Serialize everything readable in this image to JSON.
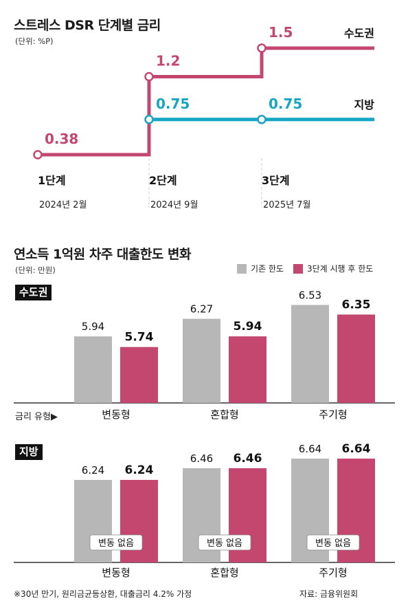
{
  "colors": {
    "capital": "#c3476f",
    "regional": "#17a5c4",
    "existing_bar": "#b7b7b7",
    "after_bar": "#c3476f",
    "badge_bg": "#111111",
    "axis": "#333333",
    "grid": "#cfcfcf"
  },
  "top": {
    "title": "스트레스 DSR 단계별 금리",
    "unit": "(단위: %P)",
    "series_labels": {
      "capital": "수도권",
      "regional": "지방"
    },
    "stages": [
      {
        "label": "1단계",
        "date": "2024년 2월"
      },
      {
        "label": "2단계",
        "date": "2024년 9월"
      },
      {
        "label": "3단계",
        "date": "2025년 7월"
      }
    ]
  },
  "bottom": {
    "title": "연소득 1억원 차주 대출한도 변화",
    "unit": "(단위: 만원)",
    "legend": {
      "existing": "기존 한도",
      "after": "3단계 시행 후 한도"
    },
    "rate_type_label": "금리 유형▶",
    "no_change_label": "변동 없음",
    "panels": [
      {
        "badge": "수도권"
      },
      {
        "badge": "지방"
      }
    ]
  },
  "footer": {
    "note": "※30년 만기, 원리금균등상환, 대출금리 4.2% 가정",
    "source": "자료: 금융위원회"
  },
  "chart_data": [
    {
      "type": "line",
      "title": "스트레스 DSR 단계별 금리",
      "unit": "%P",
      "categories": [
        "1단계",
        "2단계",
        "3단계"
      ],
      "category_dates": [
        "2024년 2월",
        "2024년 9월",
        "2025년 7월"
      ],
      "series": [
        {
          "name": "수도권",
          "values": [
            0.38,
            1.2,
            1.5
          ],
          "labels": [
            "0.38",
            "1.2",
            "1.5"
          ]
        },
        {
          "name": "지방",
          "values": [
            null,
            0.75,
            0.75
          ],
          "labels": [
            "",
            "0.75",
            "0.75"
          ]
        }
      ],
      "step": true,
      "ylim": [
        0,
        1.7
      ]
    },
    {
      "type": "bar",
      "title": "연소득 1억원 차주 대출한도 변화",
      "subtitle": "수도권",
      "unit": "만원",
      "categories": [
        "변동형",
        "혼합형",
        "주기형"
      ],
      "series": [
        {
          "name": "기존 한도",
          "values": [
            5.94,
            6.27,
            6.53
          ]
        },
        {
          "name": "3단계 시행 후 한도",
          "values": [
            5.74,
            5.94,
            6.35
          ]
        }
      ],
      "annotations": []
    },
    {
      "type": "bar",
      "subtitle": "지방",
      "unit": "만원",
      "categories": [
        "변동형",
        "혼합형",
        "주기형"
      ],
      "series": [
        {
          "name": "기존 한도",
          "values": [
            6.24,
            6.46,
            6.64
          ]
        },
        {
          "name": "3단계 시행 후 한도",
          "values": [
            6.24,
            6.46,
            6.64
          ]
        }
      ],
      "annotations": [
        "변동 없음",
        "변동 없음",
        "변동 없음"
      ]
    }
  ]
}
